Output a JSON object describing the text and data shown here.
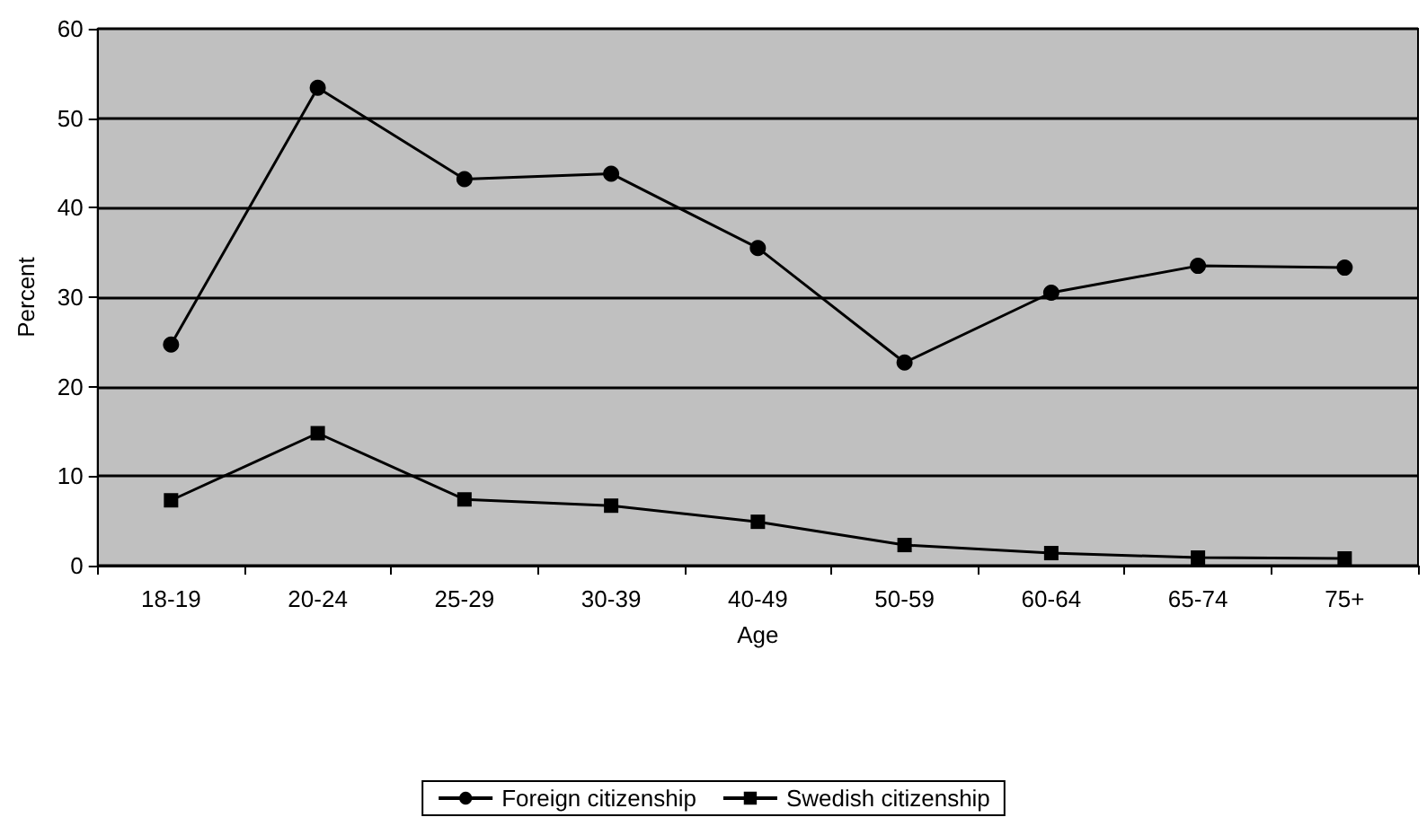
{
  "chart_data": {
    "type": "line",
    "xlabel": "Age",
    "ylabel": "Percent",
    "categories": [
      "18-19",
      "20-24",
      "25-29",
      "30-39",
      "40-49",
      "50-59",
      "60-64",
      "65-74",
      "75+"
    ],
    "series": [
      {
        "name": "Foreign citizenship",
        "color": "#000000",
        "marker": "circle",
        "values": [
          24.7,
          53.4,
          43.2,
          43.8,
          35.5,
          22.7,
          30.5,
          33.5,
          33.3
        ]
      },
      {
        "name": "Swedish citizenship",
        "color": "#000000",
        "marker": "square",
        "values": [
          7.3,
          14.8,
          7.4,
          6.7,
          4.9,
          2.3,
          1.4,
          0.9,
          0.8
        ]
      }
    ],
    "ylim": [
      0,
      60
    ],
    "yticks": [
      0,
      10,
      20,
      30,
      40,
      50,
      60
    ],
    "grid": "y",
    "legend": "bottom",
    "line_style": "solid"
  }
}
